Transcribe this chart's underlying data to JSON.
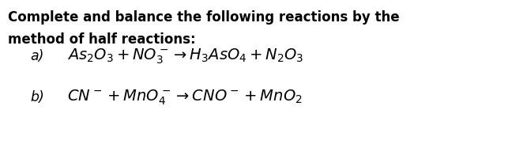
{
  "bg_color": "#ffffff",
  "title_line1": "Complete and balance the following reactions by the",
  "title_line2": "method of half reactions:",
  "label_a": "a)",
  "label_b": "b)",
  "eq_a": "$\\mathit{As}_2\\mathit{O}_3 + \\mathit{NO}_3^- \\rightarrow \\mathit{H}_3\\mathit{AsO}_4 + \\mathit{N}_2\\mathit{O}_3$",
  "eq_b": "$\\mathit{CN}^- + \\mathit{MnO}_4^- \\rightarrow \\mathit{CNO}^- + \\mathit{MnO}_2$",
  "title_fontsize": 12.0,
  "label_fontsize": 12.5,
  "eq_fontsize": 14.0,
  "fig_width": 6.67,
  "fig_height": 2.06,
  "fig_dpi": 100
}
